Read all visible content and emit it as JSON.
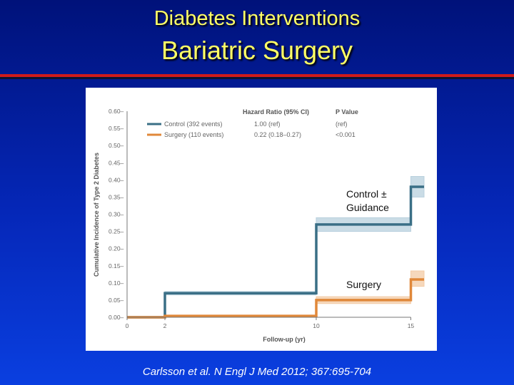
{
  "slide": {
    "title_line1": "Diabetes Interventions",
    "title_line2": "Bariatric Surgery",
    "citation": "Carlsson et al. N Engl J Med 2012; 367:695-704"
  },
  "chart_data": {
    "type": "line",
    "subtype": "step",
    "xlabel": "Follow-up (yr)",
    "ylabel": "Cumulative Incidence of Type 2 Diabetes",
    "xlim": [
      0,
      15
    ],
    "ylim": [
      0,
      0.6
    ],
    "x_ticks": [
      0,
      2,
      10,
      15
    ],
    "y_tick_labels": [
      "0.00",
      "0.05",
      "0.10",
      "0.15",
      "0.20",
      "0.25",
      "0.30",
      "0.35",
      "0.40",
      "0.45",
      "0.50",
      "0.55",
      "0.60"
    ],
    "legend": {
      "header_hazard": "Hazard Ratio (95% CI)",
      "header_p": "P Value",
      "entries": [
        {
          "label": "Control (392 events)",
          "hr": "1.00 (ref)",
          "p": "(ref)",
          "color": "#3a6f86"
        },
        {
          "label": "Surgery (110 events)",
          "hr": "0.22 (0.18–0.27)",
          "p": "<0.001",
          "color": "#e0883a"
        }
      ]
    },
    "annotations": {
      "control_line1": "Control ±",
      "control_line2": "Guidance",
      "surgery": "Surgery"
    },
    "series": [
      {
        "name": "Control",
        "color": "#3a6f86",
        "band_color": "#b8d0dd",
        "steps": [
          [
            0,
            0.0
          ],
          [
            2,
            0.0
          ],
          [
            2,
            0.07
          ],
          [
            10,
            0.07
          ],
          [
            10,
            0.27
          ],
          [
            15,
            0.27
          ],
          [
            15,
            0.38
          ],
          [
            15.7,
            0.38
          ]
        ],
        "band": [
          [
            2,
            0.065,
            0.075
          ],
          [
            10,
            0.25,
            0.29
          ],
          [
            15,
            0.35,
            0.41
          ]
        ]
      },
      {
        "name": "Surgery",
        "color": "#e0883a",
        "band_color": "#f3cba6",
        "steps": [
          [
            0,
            0.0
          ],
          [
            2,
            0.0
          ],
          [
            2,
            0.004
          ],
          [
            10,
            0.004
          ],
          [
            10,
            0.05
          ],
          [
            15,
            0.05
          ],
          [
            15,
            0.11
          ],
          [
            15.7,
            0.11
          ]
        ],
        "band": [
          [
            2,
            0.002,
            0.006
          ],
          [
            10,
            0.04,
            0.06
          ],
          [
            15,
            0.09,
            0.135
          ]
        ]
      }
    ]
  }
}
